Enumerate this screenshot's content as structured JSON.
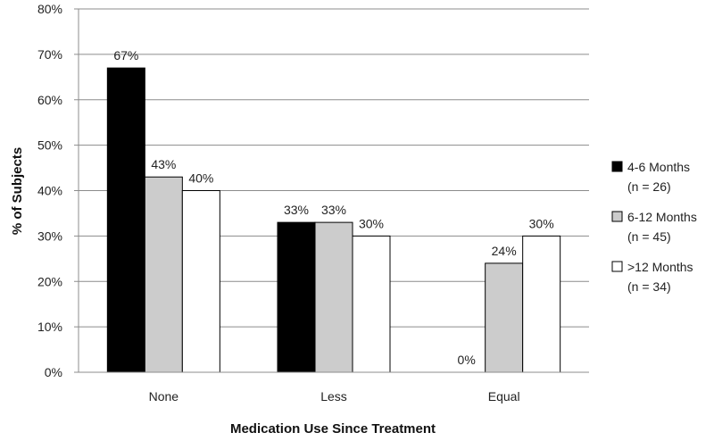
{
  "chart_data": {
    "type": "bar",
    "categories": [
      "None",
      "Less",
      "Equal"
    ],
    "series": [
      {
        "name": "4-6 Months (n = 26)",
        "name_lines": [
          "4-6 Months",
          "(n = 26)"
        ],
        "values": [
          67,
          33,
          0
        ],
        "labels": [
          "67%",
          "33%",
          "0%"
        ],
        "color": "#000000"
      },
      {
        "name": "6-12 Months (n = 45)",
        "name_lines": [
          "6-12 Months",
          "(n = 45)"
        ],
        "values": [
          43,
          33,
          24
        ],
        "labels": [
          "43%",
          "33%",
          "24%"
        ],
        "color": "#cccccc"
      },
      {
        "name": ">12 Months (n = 34)",
        "name_lines": [
          ">12 Months",
          "(n = 34)"
        ],
        "values": [
          40,
          30,
          30
        ],
        "labels": [
          "40%",
          "30%",
          "30%"
        ],
        "color": "#ffffff"
      }
    ],
    "yticks": [
      "0%",
      "10%",
      "20%",
      "30%",
      "40%",
      "50%",
      "60%",
      "70%",
      "80%"
    ],
    "ylim": [
      0,
      80
    ],
    "xlabel": "Medication Use Since Treatment",
    "ylabel": "% of Subjects",
    "grid": true,
    "legend": "right"
  }
}
